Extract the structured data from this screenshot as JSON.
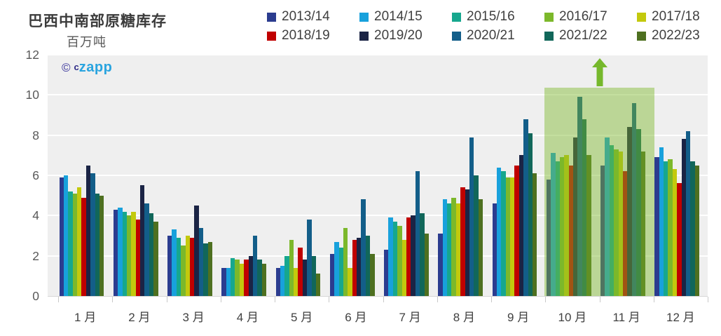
{
  "header": {
    "title": "巴西中南部原糖库存",
    "unit_label": "百万吨"
  },
  "watermark": {
    "copyright_symbol": "©",
    "brand_prefix": "c",
    "brand_name": "zapp"
  },
  "chart_data": {
    "type": "bar",
    "title": "巴西中南部原糖库存",
    "ylabel": "百万吨",
    "ylim": [
      0,
      12
    ],
    "yticks": [
      0,
      2,
      4,
      6,
      8,
      10,
      12
    ],
    "grid": true,
    "plot_background": "#EFEFEF",
    "gridline_color": "#FFFFFF",
    "legend_position": "top-right",
    "categories": [
      "1 月",
      "2 月",
      "3 月",
      "4 月",
      "5 月",
      "6 月",
      "7 月",
      "8 月",
      "9 月",
      "10 月",
      "11 月",
      "12 月"
    ],
    "series": [
      {
        "name": "2013/14",
        "color": "#2B3C8F",
        "values": [
          5.9,
          4.3,
          3.0,
          1.4,
          1.4,
          2.1,
          2.3,
          3.1,
          4.6,
          5.8,
          6.5,
          6.9
        ]
      },
      {
        "name": "2014/15",
        "color": "#18A1DC",
        "values": [
          6.0,
          4.4,
          3.3,
          1.4,
          1.5,
          2.7,
          3.9,
          4.8,
          6.4,
          7.1,
          7.9,
          7.4
        ]
      },
      {
        "name": "2015/16",
        "color": "#16A78E",
        "values": [
          5.2,
          4.2,
          2.9,
          1.9,
          2.0,
          2.4,
          3.7,
          4.6,
          6.2,
          6.7,
          7.5,
          6.7
        ]
      },
      {
        "name": "2016/17",
        "color": "#7CB82B",
        "values": [
          5.1,
          4.0,
          2.5,
          1.8,
          2.8,
          3.4,
          3.5,
          4.9,
          5.9,
          6.9,
          7.3,
          6.8
        ]
      },
      {
        "name": "2017/18",
        "color": "#C3C90D",
        "values": [
          5.4,
          4.2,
          3.0,
          1.6,
          1.4,
          1.4,
          2.8,
          4.6,
          5.9,
          7.0,
          7.2,
          6.3
        ]
      },
      {
        "name": "2018/19",
        "color": "#C00000",
        "values": [
          4.9,
          3.8,
          2.9,
          1.8,
          2.4,
          2.8,
          3.9,
          5.4,
          6.5,
          6.5,
          6.2,
          5.6
        ]
      },
      {
        "name": "2019/20",
        "color": "#1B2445",
        "values": [
          6.5,
          5.5,
          4.5,
          2.0,
          1.8,
          2.9,
          4.0,
          5.3,
          7.0,
          7.9,
          8.4,
          7.8
        ]
      },
      {
        "name": "2020/21",
        "color": "#135E89",
        "values": [
          6.1,
          4.6,
          3.4,
          3.0,
          3.8,
          4.8,
          6.2,
          7.9,
          8.8,
          9.9,
          9.6,
          8.2
        ]
      },
      {
        "name": "2021/22",
        "color": "#11675A",
        "values": [
          5.1,
          4.1,
          2.6,
          1.8,
          2.0,
          3.0,
          4.1,
          6.0,
          8.1,
          8.8,
          8.3,
          6.7
        ]
      },
      {
        "name": "2022/23",
        "color": "#4E7020",
        "values": [
          5.0,
          3.7,
          2.7,
          1.6,
          1.1,
          2.1,
          3.1,
          4.8,
          6.1,
          7.0,
          7.2,
          6.5
        ]
      }
    ],
    "highlight": {
      "categories": [
        "10 月",
        "11 月"
      ],
      "start_category_index": 9,
      "end_category_index": 10,
      "top_value": 10.35,
      "fill": "rgba(124,184,43,0.45)",
      "arrow": true,
      "arrow_color": "#76B82C"
    }
  }
}
